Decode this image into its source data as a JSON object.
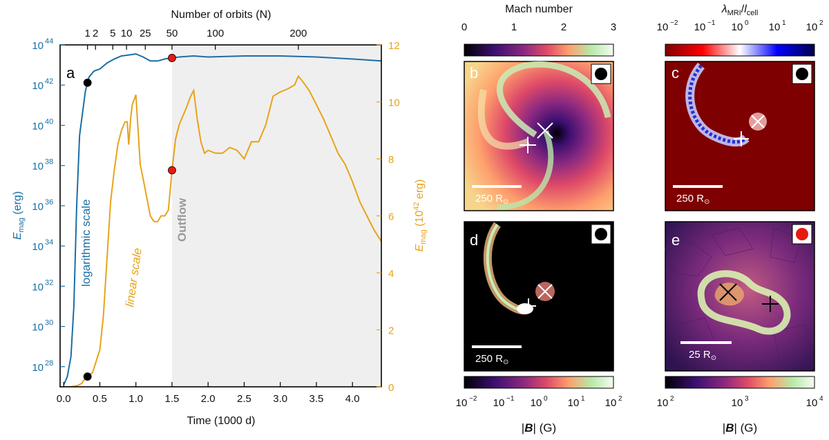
{
  "chart_data": {
    "type": "line",
    "panel_letters": [
      "a",
      "b",
      "c",
      "d",
      "e"
    ],
    "x_axis": {
      "label": "Time (1000 d)",
      "range": [
        -0.05,
        4.4
      ],
      "ticks": [
        0.0,
        0.5,
        1.0,
        1.5,
        2.0,
        2.5,
        3.0,
        3.5,
        4.0
      ],
      "tick_labels": [
        "0.0",
        "0.5",
        "1.0",
        "1.5",
        "2.0",
        "2.5",
        "3.0",
        "3.5",
        "4.0"
      ]
    },
    "top_axis": {
      "label": "Number of orbits (N)",
      "ticks": [
        {
          "label": "1",
          "t": 0.33
        },
        {
          "label": "2",
          "t": 0.44
        },
        {
          "label": "5",
          "t": 0.68
        },
        {
          "label": "10",
          "t": 0.87
        },
        {
          "label": "25",
          "t": 1.13
        },
        {
          "label": "50",
          "t": 1.5
        },
        {
          "label": "100",
          "t": 2.1
        },
        {
          "label": "200",
          "t": 3.25
        }
      ]
    },
    "left_axis": {
      "label_main": "E",
      "label_sub": "mag",
      "label_tail": " (erg)",
      "scale": "log",
      "range_exp": [
        27,
        44
      ],
      "ticks": [
        "10",
        "10",
        "10",
        "10",
        "10",
        "10",
        "10",
        "10",
        "10"
      ],
      "tick_exps": [
        "28",
        "30",
        "32",
        "34",
        "36",
        "38",
        "40",
        "42",
        "44"
      ],
      "color": "#1a6ea3"
    },
    "right_axis": {
      "label_main": "E",
      "label_sub": "mag",
      "label_mid": " (10",
      "label_sup": "42",
      "label_tail": " erg)",
      "range": [
        0,
        12
      ],
      "ticks": [
        0,
        2,
        4,
        6,
        8,
        10,
        12
      ],
      "tick_labels": [
        "0",
        "2",
        "4",
        "6",
        "8",
        "10",
        "12"
      ],
      "color": "#e8a317"
    },
    "shaded_region": {
      "from": 1.5,
      "to": 4.4,
      "label": "Outflow",
      "color": "#efefef"
    },
    "series": [
      {
        "name": "logarithmic scale",
        "axis": "left_log_exponent",
        "color": "#1a6ea3",
        "x": [
          0.0,
          0.05,
          0.1,
          0.14,
          0.18,
          0.22,
          0.26,
          0.3,
          0.35,
          0.42,
          0.5,
          0.6,
          0.7,
          0.8,
          0.9,
          1.0,
          1.1,
          1.2,
          1.3,
          1.4,
          1.5,
          1.6,
          1.8,
          2.0,
          2.5,
          3.0,
          3.5,
          4.0,
          4.4
        ],
        "y": [
          27.1,
          27.5,
          28.5,
          31.0,
          36.0,
          39.5,
          40.6,
          41.7,
          42.4,
          42.7,
          42.8,
          43.1,
          43.3,
          43.45,
          43.5,
          43.55,
          43.4,
          43.2,
          43.2,
          43.3,
          43.35,
          43.4,
          43.45,
          43.4,
          43.45,
          43.45,
          43.4,
          43.3,
          43.2
        ]
      },
      {
        "name": "linear scale",
        "axis": "right_linear",
        "color": "#e8a317",
        "x": [
          0.0,
          0.1,
          0.2,
          0.25,
          0.3,
          0.35,
          0.4,
          0.5,
          0.55,
          0.6,
          0.65,
          0.7,
          0.75,
          0.8,
          0.85,
          0.88,
          0.9,
          0.93,
          0.95,
          1.0,
          1.03,
          1.06,
          1.1,
          1.2,
          1.25,
          1.3,
          1.35,
          1.4,
          1.45,
          1.5,
          1.55,
          1.6,
          1.65,
          1.7,
          1.75,
          1.8,
          1.85,
          1.9,
          1.95,
          2.0,
          2.1,
          2.2,
          2.3,
          2.4,
          2.5,
          2.6,
          2.7,
          2.8,
          2.9,
          3.0,
          3.1,
          3.2,
          3.25,
          3.3,
          3.4,
          3.5,
          3.6,
          3.7,
          3.8,
          3.9,
          4.0,
          4.1,
          4.2,
          4.3,
          4.4
        ],
        "y": [
          0.0,
          0.0,
          0.05,
          0.12,
          0.3,
          0.4,
          0.5,
          1.3,
          2.5,
          4.5,
          6.5,
          7.6,
          8.5,
          9.0,
          9.3,
          9.3,
          8.5,
          9.5,
          9.9,
          10.25,
          9.0,
          7.8,
          7.3,
          6.0,
          5.8,
          5.8,
          6.0,
          6.0,
          6.2,
          7.6,
          8.7,
          9.2,
          9.5,
          9.8,
          10.15,
          10.4,
          9.4,
          8.6,
          8.2,
          8.3,
          8.2,
          8.2,
          8.4,
          8.3,
          8.0,
          8.6,
          8.6,
          9.2,
          10.2,
          10.35,
          10.45,
          10.6,
          10.9,
          10.75,
          10.4,
          9.9,
          9.4,
          8.8,
          8.2,
          7.8,
          7.2,
          6.5,
          6.0,
          5.5,
          5.1
        ]
      }
    ],
    "markers": [
      {
        "series": "logarithmic scale",
        "t": 0.33,
        "color": "#000000"
      },
      {
        "series": "logarithmic scale",
        "t": 1.5,
        "color": "#e8190f"
      },
      {
        "series": "linear scale",
        "t": 0.33,
        "color": "#000000"
      },
      {
        "series": "linear scale",
        "t": 1.5,
        "color": "#e8190f"
      }
    ],
    "panels": [
      {
        "letter": "b",
        "colorbar_label": "Mach number",
        "colorbar_position": "top",
        "colorbar_ticks": [
          "0",
          "1",
          "2",
          "3"
        ],
        "scale_bar": "250 R",
        "scale_sub": "⊙",
        "marker": "black"
      },
      {
        "letter": "c",
        "colorbar_label_main": "λ",
        "colorbar_label_sub1": "MRI",
        "colorbar_label_slash": "/",
        "colorbar_label_l": "l",
        "colorbar_label_sub2": "cell",
        "colorbar_position": "top",
        "colorbar_tick_base": "10",
        "colorbar_tick_exps": [
          "−2",
          "−1",
          "0",
          "1",
          "2"
        ],
        "scale_bar": "250 R",
        "scale_sub": "⊙",
        "marker": "black"
      },
      {
        "letter": "d",
        "colorbar_label_pre": "|",
        "colorbar_label_bold": "B",
        "colorbar_label_post": "| (G)",
        "colorbar_position": "bottom",
        "colorbar_tick_base": "10",
        "colorbar_tick_exps": [
          "−2",
          "−1",
          "0",
          "1",
          "2"
        ],
        "scale_bar": "250 R",
        "scale_sub": "⊙",
        "marker": "black"
      },
      {
        "letter": "e",
        "colorbar_label_pre": "|",
        "colorbar_label_bold": "B",
        "colorbar_label_post": "| (G)",
        "colorbar_position": "bottom",
        "colorbar_tick_base": "10",
        "colorbar_tick_exps": [
          "2",
          "3",
          "4"
        ],
        "scale_bar": "25 R",
        "scale_sub": "⊙",
        "marker": "red"
      }
    ]
  }
}
